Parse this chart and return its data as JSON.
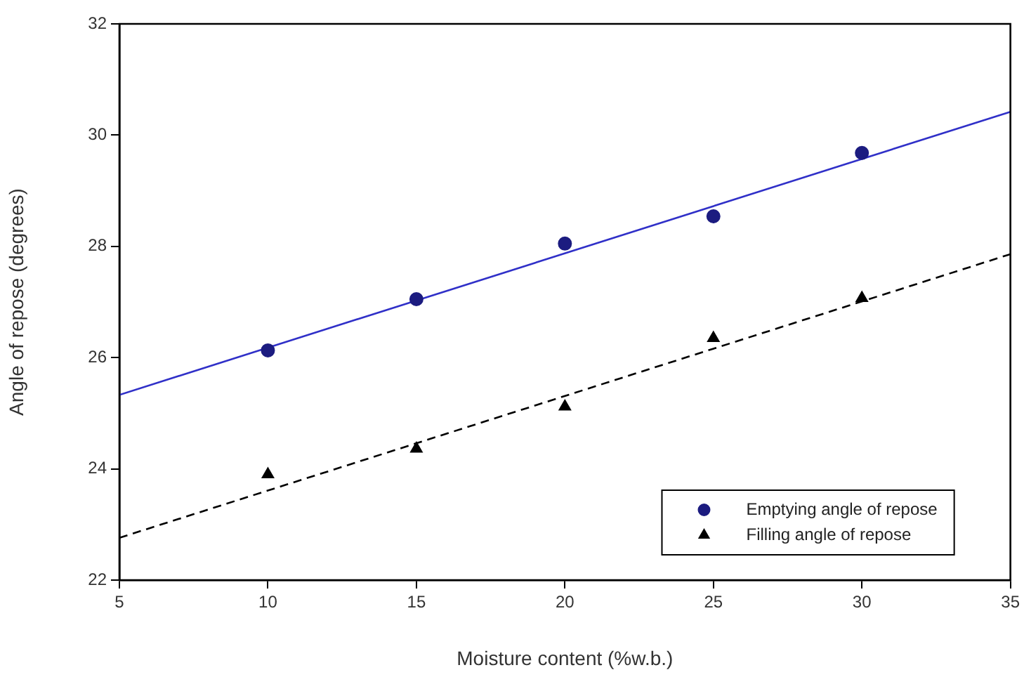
{
  "chart_data": {
    "type": "scatter",
    "xlabel": "Moisture content (%w.b.)",
    "ylabel": "Angle of repose (degrees)",
    "xlim": [
      5,
      35
    ],
    "xticks": [
      5,
      10,
      15,
      20,
      25,
      30,
      35
    ],
    "ylim": [
      22,
      32
    ],
    "yticks": [
      22,
      24,
      26,
      28,
      30,
      32
    ],
    "grid": false,
    "legend": "bottom right",
    "series": [
      {
        "name": "Emptying angle of repose",
        "type": "scatter",
        "marker": "circle",
        "color": "#1c1c80",
        "x": [
          10,
          15,
          20,
          25,
          30
        ],
        "values": [
          26.13,
          27.05,
          28.05,
          28.54,
          29.68
        ]
      },
      {
        "name": "Filling angle of repose",
        "type": "scatter",
        "marker": "triangle",
        "color": "#000000",
        "x": [
          10,
          15,
          20,
          25,
          30
        ],
        "values": [
          23.9,
          24.36,
          25.12,
          26.35,
          27.07
        ]
      },
      {
        "type": "line",
        "color": "#3030c8",
        "line_style": "solid",
        "x": [
          5,
          35
        ],
        "values": [
          25.33,
          30.42
        ]
      },
      {
        "type": "line",
        "color": "#000000",
        "line_style": "dashed",
        "x": [
          5,
          35
        ],
        "values": [
          22.76,
          27.86
        ]
      }
    ]
  }
}
